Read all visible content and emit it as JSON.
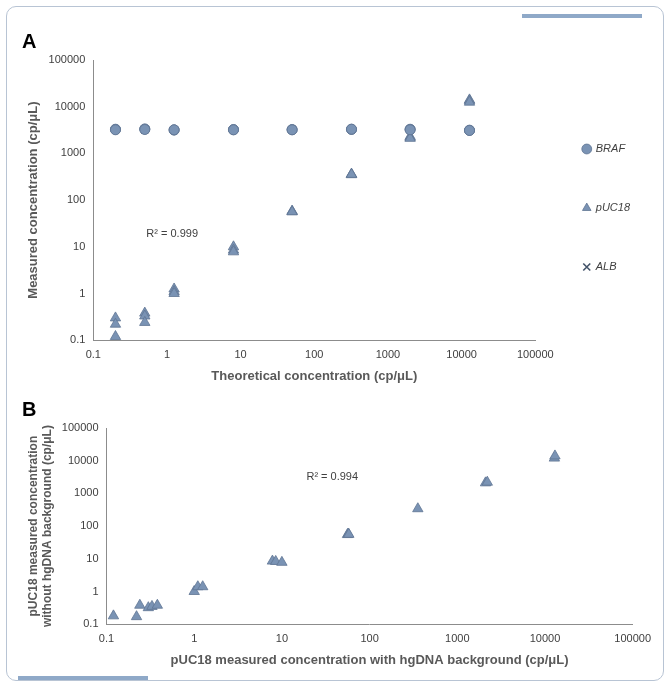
{
  "chart_data": [
    {
      "type": "scatter",
      "title": "A",
      "x_label": "Theoretical concentration (cp/μL)",
      "y_label": [
        "Measured concentration (cp/μL)"
      ],
      "x": [
        0.2,
        0.2,
        0.2,
        0.5,
        0.5,
        0.5,
        1.25,
        1.25,
        1.25,
        8,
        8,
        8,
        50,
        50,
        50,
        320,
        320,
        320,
        2000,
        2000,
        2000,
        12800,
        12800,
        12800
      ],
      "series": [
        {
          "name": "BRAF",
          "color": "#7a93b4",
          "marker": "circle",
          "values": [
            3300,
            3250,
            3200,
            3300,
            3350,
            3250,
            3200,
            3150,
            3200,
            3250,
            3200,
            3200,
            3200,
            3250,
            3200,
            3300,
            3250,
            3300,
            3300,
            3250,
            3200,
            3100,
            3150,
            3100
          ]
        },
        {
          "name": "pUC18",
          "color": "#7a93b4",
          "marker": "triangle",
          "values": [
            0.3,
            0.22,
            0.12,
            0.38,
            0.33,
            0.24,
            1.25,
            1.1,
            1.0,
            10,
            8.5,
            7.8,
            58,
            57,
            56,
            360,
            350,
            355,
            2300,
            2200,
            2100,
            14000,
            13500,
            12500
          ]
        },
        {
          "name": "ALB",
          "color": "#44546a",
          "marker": "x",
          "values": [
            3200,
            3250,
            3300,
            3250,
            3300,
            3200,
            3150,
            3200,
            3150,
            3200,
            3250,
            3200,
            3250,
            3200,
            3250,
            3250,
            3300,
            3250,
            3200,
            3300,
            3250,
            3150,
            3100,
            3100
          ]
        }
      ],
      "annotations": [
        "R² = 0.999"
      ],
      "log": true,
      "grid": false,
      "legend": "right",
      "xlim": [
        0.1,
        100000
      ],
      "xticks": [
        0.1,
        1,
        10,
        100,
        1000,
        10000,
        100000
      ],
      "ylim": [
        0.1,
        100000
      ],
      "yticks": [
        0.1,
        1,
        10,
        100,
        1000,
        10000,
        100000
      ]
    },
    {
      "type": "scatter",
      "title": "B",
      "x_label": "pUC18 measured concentration with hgDNA background (cp/μL)",
      "y_label": [
        "pUC18 measured concentration",
        "without hgDNA background (cp/μL)"
      ],
      "x": [
        0.12,
        0.22,
        0.24,
        0.3,
        0.33,
        0.38,
        1.0,
        1.1,
        1.25,
        7.8,
        8.5,
        10,
        56,
        57,
        58,
        355,
        2100,
        2200,
        12800,
        13000
      ],
      "series": [
        {
          "name": "pUC18",
          "color": "#7a93b4",
          "marker": "triangle",
          "values": [
            0.18,
            0.17,
            0.38,
            0.32,
            0.35,
            0.38,
            1.0,
            1.4,
            1.4,
            8.5,
            8.3,
            7.8,
            55,
            57,
            56,
            340,
            2100,
            2200,
            12000,
            14000
          ]
        }
      ],
      "annotations": [
        "R² = 0.994"
      ],
      "log": true,
      "grid": false,
      "legend": "none",
      "xlim": [
        0.1,
        100000
      ],
      "xticks": [
        0.1,
        1,
        10,
        100,
        1000,
        10000,
        100000
      ],
      "ylim": [
        0.1,
        100000
      ],
      "yticks": [
        0.1,
        1,
        10,
        100,
        1000,
        10000,
        100000
      ]
    }
  ]
}
